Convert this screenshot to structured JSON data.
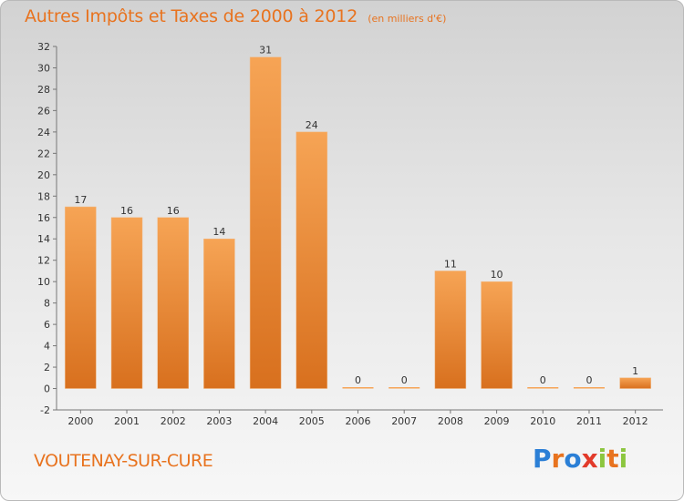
{
  "title": "Autres Impôts et Taxes de 2000 à 2012",
  "subtitle": "(en milliers d'€)",
  "footer": {
    "city": "VOUTENAY-SUR-CURE"
  },
  "logo": {
    "text": "Proxiti",
    "letter_colors": [
      "#2b7fd6",
      "#e8731f",
      "#2b7fd6",
      "#e23a2a",
      "#8cc63f",
      "#e8731f",
      "#8cc63f"
    ]
  },
  "colors": {
    "accent": "#e8731f",
    "bar_top": "#f6a455",
    "bar_bottom": "#d8701e"
  },
  "chart_data": {
    "type": "bar",
    "title": "Autres Impôts et Taxes de 2000 à 2012",
    "subtitle": "(en milliers d'€)",
    "categories": [
      "2000",
      "2001",
      "2002",
      "2003",
      "2004",
      "2005",
      "2006",
      "2007",
      "2008",
      "2009",
      "2010",
      "2011",
      "2012"
    ],
    "values": [
      17,
      16,
      16,
      14,
      31,
      24,
      0,
      0,
      11,
      10,
      0,
      0,
      1
    ],
    "ylim": [
      -2,
      32
    ],
    "yticks": [
      -2,
      0,
      2,
      4,
      6,
      8,
      10,
      12,
      14,
      16,
      18,
      20,
      22,
      24,
      26,
      28,
      30,
      32
    ],
    "grid": false,
    "legend": "none"
  }
}
